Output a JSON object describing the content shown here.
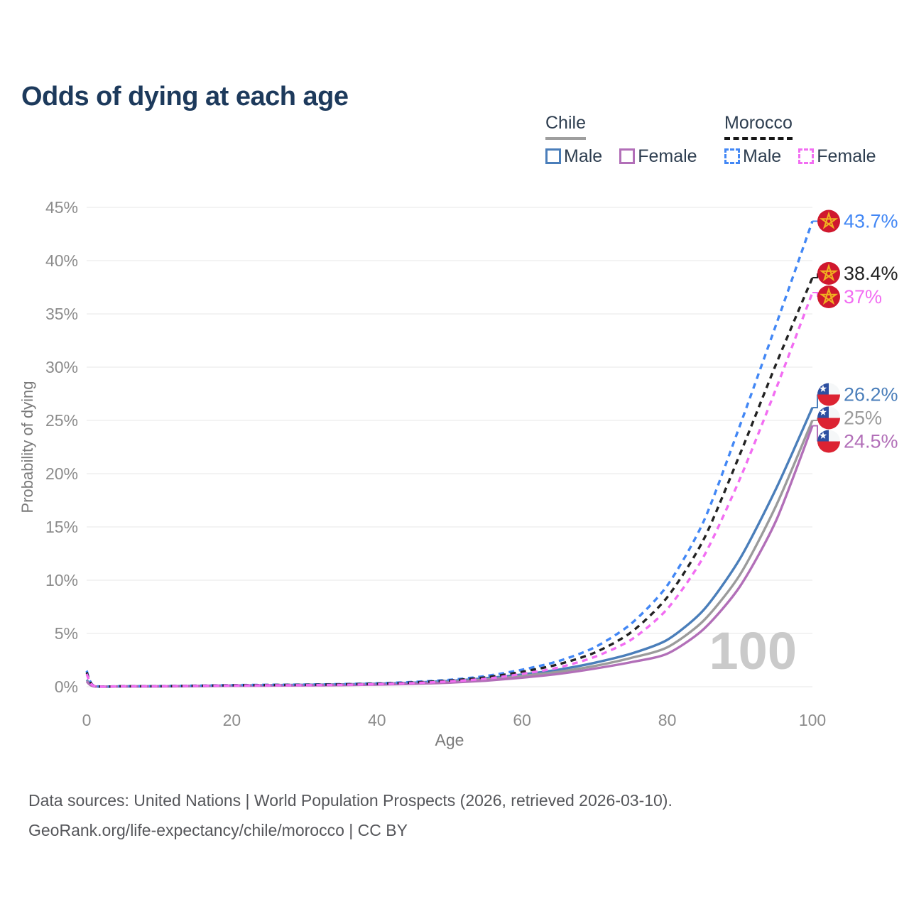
{
  "title": "Odds of dying at each age",
  "legend": {
    "groups": [
      {
        "name": "Chile",
        "style": "solid",
        "underline_color": "#9e9e9e",
        "items": [
          {
            "label": "Male",
            "color": "#4a7eba"
          },
          {
            "label": "Female",
            "color": "#b26fb8"
          }
        ]
      },
      {
        "name": "Morocco",
        "style": "dashed",
        "underline_color": "#161616",
        "items": [
          {
            "label": "Male",
            "color": "#4287f5"
          },
          {
            "label": "Female",
            "color": "#f26df2"
          }
        ]
      }
    ]
  },
  "chart_data": {
    "type": "line",
    "xlabel": "Age",
    "ylabel": "Probability of dying",
    "xlim": [
      0,
      100
    ],
    "ylim": [
      0,
      45
    ],
    "x_ticks": [
      0,
      20,
      40,
      60,
      80,
      100
    ],
    "y_ticks": [
      "0%",
      "5%",
      "10%",
      "15%",
      "20%",
      "25%",
      "30%",
      "35%",
      "40%",
      "45%"
    ],
    "y_tick_step": 5,
    "grid": true,
    "watermark": "100",
    "x": [
      0,
      1,
      5,
      10,
      15,
      20,
      25,
      30,
      35,
      40,
      45,
      50,
      55,
      60,
      65,
      70,
      75,
      80,
      85,
      90,
      95,
      100
    ],
    "series": [
      {
        "id": "chile-male",
        "name": "Chile Male",
        "country": "Chile",
        "sex": "Male",
        "line": "solid",
        "color": "#4a7eba",
        "flag": "chile",
        "end_label": "26.2%",
        "values": [
          0.65,
          0.04,
          0.03,
          0.04,
          0.08,
          0.12,
          0.15,
          0.18,
          0.22,
          0.28,
          0.38,
          0.55,
          0.8,
          1.15,
          1.6,
          2.25,
          3.1,
          4.4,
          7.2,
          12.0,
          18.6,
          26.2
        ]
      },
      {
        "id": "chile-both",
        "name": "Chile Both sexes",
        "country": "Chile",
        "sex": "Both",
        "line": "solid",
        "color": "#9b9b9b",
        "flag": "chile",
        "end_label": "25%",
        "values": [
          0.55,
          0.035,
          0.025,
          0.035,
          0.07,
          0.1,
          0.13,
          0.15,
          0.18,
          0.24,
          0.32,
          0.46,
          0.68,
          1.0,
          1.4,
          1.95,
          2.7,
          3.7,
          6.2,
          10.5,
          17.0,
          25.0
        ]
      },
      {
        "id": "chile-female",
        "name": "Chile Female",
        "country": "Chile",
        "sex": "Female",
        "line": "solid",
        "color": "#b26fb8",
        "flag": "chile",
        "end_label": "24.5%",
        "values": [
          0.5,
          0.03,
          0.02,
          0.03,
          0.05,
          0.08,
          0.1,
          0.12,
          0.15,
          0.2,
          0.27,
          0.38,
          0.57,
          0.85,
          1.2,
          1.7,
          2.3,
          3.1,
          5.4,
          9.4,
          15.6,
          24.5
        ]
      },
      {
        "id": "morocco-male",
        "name": "Morocco Male",
        "country": "Morocco",
        "sex": "Male",
        "line": "dashed",
        "color": "#4287f5",
        "flag": "morocco",
        "end_label": "43.7%",
        "values": [
          1.5,
          0.1,
          0.05,
          0.06,
          0.1,
          0.15,
          0.18,
          0.2,
          0.25,
          0.32,
          0.45,
          0.65,
          1.0,
          1.6,
          2.4,
          3.7,
          5.9,
          9.5,
          15.5,
          24.5,
          34.0,
          43.7
        ]
      },
      {
        "id": "morocco-both",
        "name": "Morocco Both sexes",
        "country": "Morocco",
        "sex": "Both",
        "line": "dashed",
        "color": "#222222",
        "flag": "morocco",
        "end_label": "38.4%",
        "values": [
          1.35,
          0.09,
          0.05,
          0.05,
          0.09,
          0.13,
          0.16,
          0.18,
          0.22,
          0.28,
          0.4,
          0.58,
          0.88,
          1.4,
          2.1,
          3.2,
          5.1,
          8.4,
          13.8,
          21.8,
          30.3,
          38.4
        ]
      },
      {
        "id": "morocco-female",
        "name": "Morocco Female",
        "country": "Morocco",
        "sex": "Female",
        "line": "dashed",
        "color": "#f26df2",
        "flag": "morocco",
        "end_label": "37%",
        "values": [
          1.2,
          0.08,
          0.04,
          0.04,
          0.08,
          0.11,
          0.13,
          0.15,
          0.18,
          0.24,
          0.34,
          0.5,
          0.75,
          1.2,
          1.8,
          2.8,
          4.4,
          7.3,
          12.2,
          19.5,
          28.0,
          37.0
        ]
      }
    ],
    "flag_colors": {
      "chile_blue": "#2d4fa1",
      "chile_red": "#dc2332",
      "chile_white": "#f5f7f8",
      "morocco_red": "#d0182e",
      "morocco_star": "#efb021"
    }
  },
  "footer": {
    "line1": "Data sources: United Nations | World Population Prospects (2026, retrieved 2026-03-10).",
    "line2": "GeoRank.org/life-expectancy/chile/morocco | CC BY"
  }
}
